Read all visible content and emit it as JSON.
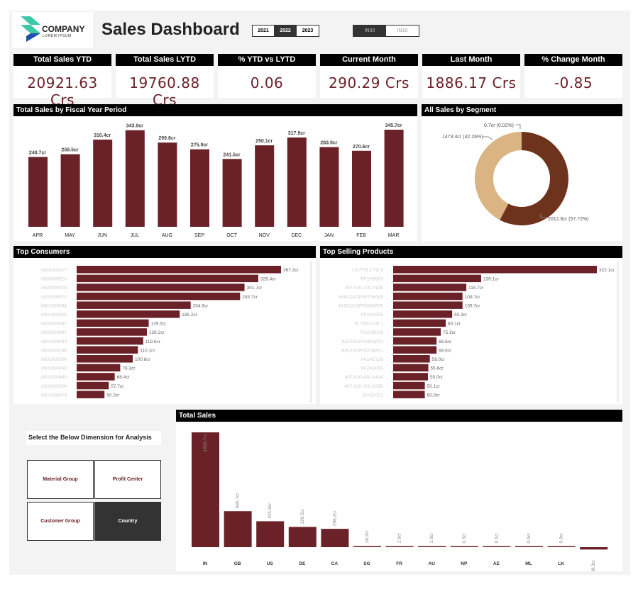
{
  "logo": {
    "company": "COMPANY",
    "tagline": "LOREM IPSUM"
  },
  "title": "Sales Dashboard",
  "years": [
    {
      "label": "2021",
      "active": false
    },
    {
      "label": "2022",
      "active": true
    },
    {
      "label": "2023",
      "active": false
    }
  ],
  "company_codes": [
    {
      "label": "IN00",
      "active": true
    },
    {
      "label": "IN10",
      "active": false
    }
  ],
  "kpis": [
    {
      "label": "Total Sales YTD",
      "value": "20921.63 Crs"
    },
    {
      "label": "Total Sales LYTD",
      "value": "19760.88 Crs"
    },
    {
      "label": "% YTD vs LYTD",
      "value": "0.06"
    },
    {
      "label": "Current Month",
      "value": "290.29 Crs"
    },
    {
      "label": "Last Month",
      "value": "1886.17 Crs"
    },
    {
      "label": "% Change Month",
      "value": "-0.85"
    }
  ],
  "colors": {
    "bar": "#6b2128",
    "donut_dark": "#6e331c",
    "donut_light": "#dab482"
  },
  "chart_data": [
    {
      "type": "bar",
      "title": "Total Sales by Fiscal Year Period",
      "categories": [
        "APR",
        "MAY",
        "JUN",
        "JUL",
        "AUG",
        "SEP",
        "OCT",
        "NOV",
        "DEC",
        "JAN",
        "FEB",
        "MAR"
      ],
      "values": [
        248.7,
        258.5,
        310.4,
        343.9,
        299.8,
        275.9,
        241.5,
        290.1,
        317.9,
        283.9,
        270.6,
        345.7
      ],
      "labels": [
        "248.7cr",
        "258.5cr",
        "310.4cr",
        "343.9cr",
        "299.8cr",
        "275.9cr",
        "241.5cr",
        "290.1cr",
        "317.9cr",
        "283.9cr",
        "270.6cr",
        "345.7cr"
      ],
      "ylim": [
        0,
        360
      ]
    },
    {
      "type": "pie",
      "title": "All Sales by Segment",
      "values": [
        2012.6,
        1473.4,
        0.7
      ],
      "labels": [
        "2012.6cr (57.72%)",
        "1473.4cr (42.26%)",
        "0.7cr (0.02%)"
      ]
    },
    {
      "type": "bar",
      "orientation": "horizontal",
      "title": "Top Consumers",
      "categories": [
        "0003000017",
        "0003000010",
        "0003000018",
        "0003000012",
        "0001000584",
        "0001000426",
        "0003000047",
        "0001000481",
        "0001000443",
        "0001000238",
        "0001000354",
        "0001000438",
        "0001000449",
        "0003000024",
        "0001000373"
      ],
      "values": [
        367.3,
        326.4,
        301.7,
        293.7,
        204.9,
        185.2,
        129.5,
        126.2,
        119.6,
        110.1,
        100.8,
        78.3,
        68.4,
        57.7,
        50.0
      ],
      "labels": [
        "367.3cr",
        "326.4cr",
        "301.7cr",
        "293.7cr",
        "204.9cr",
        "185.2cr",
        "129.5cr",
        "126.2cr",
        "119.6cr",
        "110.1cr",
        "100.8cr",
        "78.3cr",
        "68.4cr",
        "57.7cr",
        "50.0cr"
      ]
    },
    {
      "type": "bar",
      "orientation": "horizontal",
      "title": "Top Selling Products",
      "categories": [
        "LR FTB 2 TO 5",
        "PF2AB503",
        "407-030-700-213B",
        "KHS22A3P50706A05",
        "KHS22A3P50806A05",
        "PF2AB505",
        "I6.T6100.05.1",
        "PU2AB008",
        "KEO053P50808A01",
        "KEO053P50708A01",
        "PA2AE126",
        "PA2AD099",
        "407-030-400-149A",
        "407-030-200-103D",
        "JDIGP001"
      ],
      "values": [
        322.1,
        139.1,
        115.7,
        109.7,
        109.7,
        93.3,
        83.1,
        75.3,
        68.6,
        68.6,
        58.0,
        55.6,
        55.0,
        50.1,
        50.0
      ],
      "labels": [
        "322.1cr",
        "139.1cr",
        "115.7cr",
        "109.7cr",
        "109.7cr",
        "93.3cr",
        "83.1cr",
        "75.3cr",
        "68.6cr",
        "68.6cr",
        "58.0cr",
        "55.6cr",
        "55.0cr",
        "50.1cr",
        "50.0cr"
      ]
    },
    {
      "type": "bar",
      "title": "Total Sales",
      "categories": [
        "IN",
        "GB",
        "US",
        "DE",
        "CA",
        "SG",
        "FR",
        "AU",
        "NP",
        "AE",
        "ML",
        "LK",
        ""
      ],
      "values": [
        1868.7,
        585.7,
        421.9,
        329.5,
        298.2,
        18.2,
        1.6,
        1.0,
        0.3,
        0.1,
        0.0,
        0.0,
        -38.3
      ],
      "labels": [
        "1868.7cr",
        "585.7cr",
        "421.9cr",
        "329.5cr",
        "298.2cr",
        "18.2cr",
        "1.6cr",
        "1.0cr",
        "0.3cr",
        "0.1cr",
        "0.0cr",
        "0.0cr",
        "-38.3cr"
      ]
    }
  ],
  "dimension": {
    "prompt": "Select the Below Dimension for Analysis",
    "options": [
      {
        "label": "Material Group",
        "active": false
      },
      {
        "label": "Profit Center",
        "active": false
      },
      {
        "label": "Customer Group",
        "active": false
      },
      {
        "label": "Country",
        "active": true
      }
    ]
  }
}
